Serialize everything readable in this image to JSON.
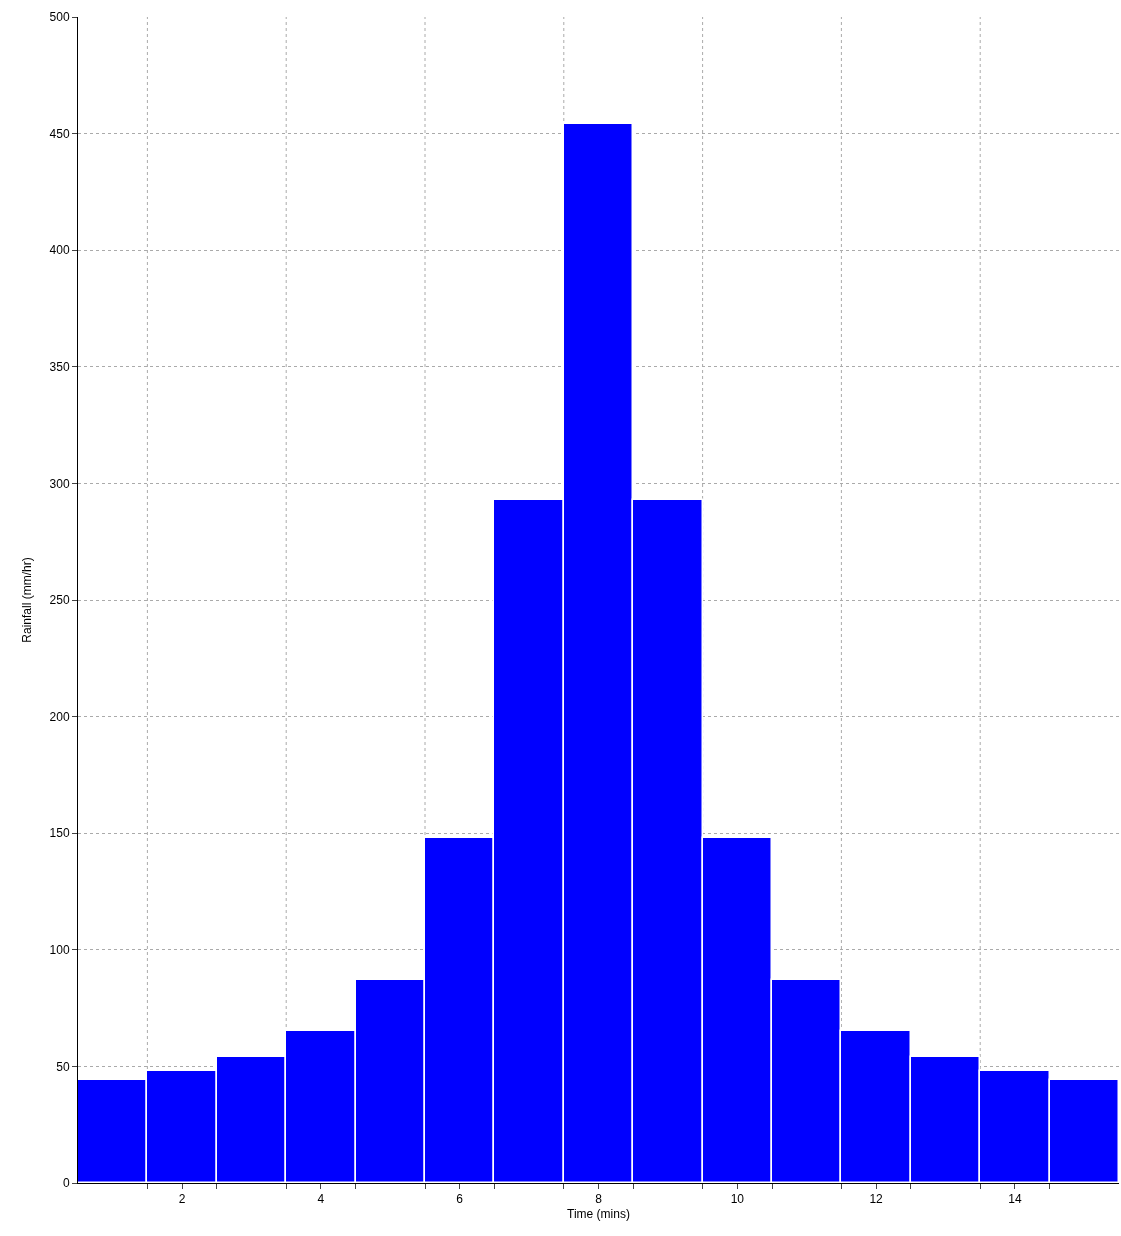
{
  "chart_data": {
    "type": "bar",
    "xlabel": "Time (mins)",
    "ylabel": "Rainfall (mm/hr)",
    "x": [
      1,
      2,
      3,
      4,
      5,
      6,
      7,
      8,
      9,
      10,
      11,
      12,
      13,
      14,
      15
    ],
    "values": [
      44,
      48,
      54,
      65,
      87,
      148,
      293,
      454,
      293,
      148,
      87,
      65,
      54,
      48,
      44
    ],
    "color": "#0000ff",
    "xlim": [
      0.5,
      15.5
    ],
    "xticks": [
      {
        "value": 1.5,
        "label": null
      },
      2,
      {
        "value": 2.5,
        "label": null
      },
      {
        "value": 3.5,
        "label": null
      },
      4,
      {
        "value": 4.5,
        "label": null
      },
      {
        "value": 5.5,
        "label": null
      },
      6,
      {
        "value": 6.5,
        "label": null
      },
      {
        "value": 7.5,
        "label": null
      },
      8,
      {
        "value": 8.5,
        "label": null
      },
      {
        "value": 9.5,
        "label": null
      },
      10,
      {
        "value": 10.5,
        "label": null
      },
      {
        "value": 11.5,
        "label": null
      },
      12,
      {
        "value": 12.5,
        "label": null
      },
      {
        "value": 13.5,
        "label": null
      },
      14,
      {
        "value": 14.5,
        "label": null
      }
    ],
    "ylim": [
      0,
      500
    ],
    "yticks": [
      0,
      50,
      100,
      150,
      200,
      250,
      300,
      350,
      400,
      450,
      500
    ],
    "grid": true
  }
}
